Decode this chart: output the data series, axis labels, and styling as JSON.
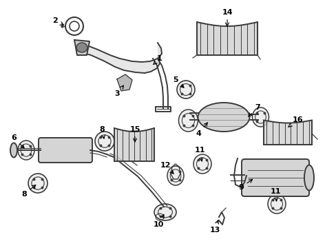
{
  "background_color": "#ffffff",
  "line_color": "#3a3a3a",
  "text_color": "#000000",
  "fig_width": 4.89,
  "fig_height": 3.6,
  "dpi": 100
}
